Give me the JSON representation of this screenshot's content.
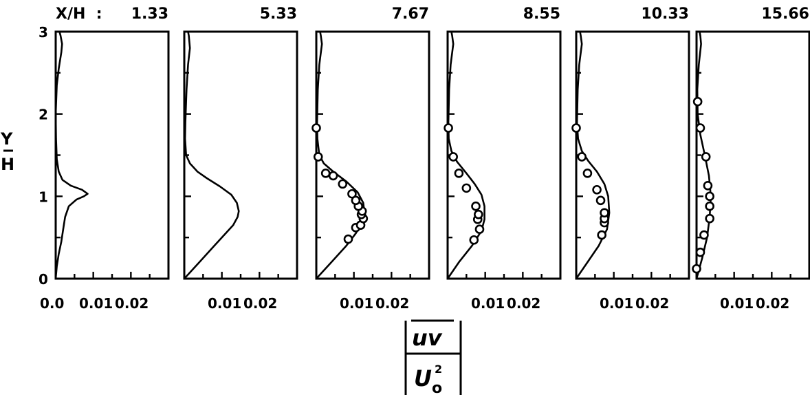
{
  "chart_data": {
    "type": "line",
    "x_prefix": "X/H  :",
    "ylabel_top": "Y",
    "ylabel_bottom": "H",
    "ylim": [
      0,
      3
    ],
    "yticks": [
      "0",
      "1",
      "2",
      "3"
    ],
    "xlim": [
      0,
      0.03
    ],
    "xlabel_num": "uv",
    "xlabel_den": "U",
    "xlabel_den_sub": "o",
    "xlabel_den_sup": "2",
    "panels": [
      {
        "title": "1.33",
        "xticks": [
          {
            "v": 0,
            "label": "0.0"
          },
          {
            "v": 0.01,
            "label": "0.01"
          },
          {
            "v": 0.02,
            "label": "0.02"
          }
        ],
        "curve": [
          [
            0,
            0
          ],
          [
            0.0003,
            0.15
          ],
          [
            0.0008,
            0.3
          ],
          [
            0.0015,
            0.45
          ],
          [
            0.002,
            0.6
          ],
          [
            0.0025,
            0.75
          ],
          [
            0.0035,
            0.88
          ],
          [
            0.0055,
            0.96
          ],
          [
            0.0075,
            1.0
          ],
          [
            0.0085,
            1.03
          ],
          [
            0.007,
            1.08
          ],
          [
            0.004,
            1.13
          ],
          [
            0.0018,
            1.2
          ],
          [
            0.0008,
            1.3
          ],
          [
            0.0003,
            1.45
          ],
          [
            0.0001,
            1.7
          ],
          [
            0,
            2.0
          ],
          [
            0.0003,
            2.35
          ],
          [
            0.0008,
            2.55
          ],
          [
            0.0015,
            2.75
          ],
          [
            0.0017,
            2.85
          ],
          [
            0.0013,
            2.95
          ],
          [
            0.001,
            3.0
          ]
        ],
        "points": []
      },
      {
        "title": "5.33",
        "xticks": [
          {
            "v": 0.01,
            "label": "0.01"
          },
          {
            "v": 0.02,
            "label": "0.02"
          }
        ],
        "curve": [
          [
            0,
            0
          ],
          [
            0.004,
            0.2
          ],
          [
            0.008,
            0.4
          ],
          [
            0.011,
            0.55
          ],
          [
            0.013,
            0.65
          ],
          [
            0.0142,
            0.75
          ],
          [
            0.0145,
            0.82
          ],
          [
            0.014,
            0.92
          ],
          [
            0.0125,
            1.02
          ],
          [
            0.0095,
            1.12
          ],
          [
            0.006,
            1.22
          ],
          [
            0.0035,
            1.3
          ],
          [
            0.0015,
            1.4
          ],
          [
            0.0005,
            1.5
          ],
          [
            0.0002,
            1.7
          ],
          [
            0.0003,
            1.9
          ],
          [
            0.0006,
            2.3
          ],
          [
            0.001,
            2.6
          ],
          [
            0.0015,
            2.8
          ],
          [
            0.0012,
            2.95
          ],
          [
            0.001,
            3.0
          ]
        ],
        "points": []
      },
      {
        "title": "7.67",
        "xticks": [
          {
            "v": 0.01,
            "label": "0.01"
          },
          {
            "v": 0.02,
            "label": "0.02"
          }
        ],
        "curve": [
          [
            0,
            0
          ],
          [
            0.004,
            0.2
          ],
          [
            0.008,
            0.4
          ],
          [
            0.0105,
            0.55
          ],
          [
            0.0122,
            0.68
          ],
          [
            0.0128,
            0.8
          ],
          [
            0.0125,
            0.92
          ],
          [
            0.011,
            1.05
          ],
          [
            0.008,
            1.18
          ],
          [
            0.0045,
            1.3
          ],
          [
            0.002,
            1.4
          ],
          [
            0.0008,
            1.5
          ],
          [
            0.0003,
            1.7
          ],
          [
            0.0002,
            1.9
          ],
          [
            0.0004,
            2.3
          ],
          [
            0.0008,
            2.6
          ],
          [
            0.0015,
            2.85
          ],
          [
            0.0012,
            2.95
          ],
          [
            0.001,
            3.0
          ]
        ],
        "points": [
          [
            0.0085,
            0.48
          ],
          [
            0.0105,
            0.62
          ],
          [
            0.0118,
            0.65
          ],
          [
            0.0125,
            0.73
          ],
          [
            0.012,
            0.78
          ],
          [
            0.0122,
            0.82
          ],
          [
            0.0112,
            0.88
          ],
          [
            0.0105,
            0.95
          ],
          [
            0.0095,
            1.03
          ],
          [
            0.007,
            1.15
          ],
          [
            0.0045,
            1.25
          ],
          [
            0.0025,
            1.28
          ],
          [
            0.0005,
            1.48
          ],
          [
            0,
            1.83
          ]
        ]
      },
      {
        "title": "8.55",
        "xticks": [
          {
            "v": 0.01,
            "label": "0.01"
          },
          {
            "v": 0.02,
            "label": "0.02"
          }
        ],
        "curve": [
          [
            0,
            0
          ],
          [
            0.003,
            0.2
          ],
          [
            0.0065,
            0.4
          ],
          [
            0.009,
            0.58
          ],
          [
            0.0098,
            0.72
          ],
          [
            0.0098,
            0.88
          ],
          [
            0.009,
            1.02
          ],
          [
            0.0072,
            1.15
          ],
          [
            0.005,
            1.28
          ],
          [
            0.0025,
            1.42
          ],
          [
            0.001,
            1.55
          ],
          [
            0.0003,
            1.7
          ],
          [
            0.0002,
            1.9
          ],
          [
            0.0004,
            2.3
          ],
          [
            0.0008,
            2.6
          ],
          [
            0.0015,
            2.85
          ],
          [
            0.0012,
            2.95
          ],
          [
            0.001,
            3.0
          ]
        ],
        "points": [
          [
            0.007,
            0.47
          ],
          [
            0.0085,
            0.6
          ],
          [
            0.008,
            0.72
          ],
          [
            0.0082,
            0.78
          ],
          [
            0.0075,
            0.88
          ],
          [
            0.005,
            1.1
          ],
          [
            0.003,
            1.28
          ],
          [
            0.0015,
            1.48
          ],
          [
            0.0002,
            1.83
          ]
        ]
      },
      {
        "title": "10.33",
        "xticks": [
          {
            "v": 0.01,
            "label": "0.01"
          },
          {
            "v": 0.02,
            "label": "0.02"
          }
        ],
        "curve": [
          [
            0,
            0
          ],
          [
            0.003,
            0.2
          ],
          [
            0.006,
            0.4
          ],
          [
            0.0082,
            0.6
          ],
          [
            0.0088,
            0.8
          ],
          [
            0.0085,
            1.0
          ],
          [
            0.0075,
            1.15
          ],
          [
            0.0055,
            1.3
          ],
          [
            0.0032,
            1.43
          ],
          [
            0.0015,
            1.55
          ],
          [
            0.0005,
            1.7
          ],
          [
            0.0002,
            1.9
          ],
          [
            0.0004,
            2.3
          ],
          [
            0.0008,
            2.6
          ],
          [
            0.0015,
            2.85
          ],
          [
            0.0012,
            2.95
          ],
          [
            0.001,
            3.0
          ]
        ],
        "points": [
          [
            0.0068,
            0.53
          ],
          [
            0.0075,
            0.68
          ],
          [
            0.0075,
            0.73
          ],
          [
            0.0075,
            0.8
          ],
          [
            0.0065,
            0.95
          ],
          [
            0.0055,
            1.08
          ],
          [
            0.003,
            1.28
          ],
          [
            0.0015,
            1.48
          ],
          [
            0,
            1.83
          ]
        ]
      },
      {
        "title": "15.66",
        "xticks": [
          {
            "v": 0.01,
            "label": "0.01"
          },
          {
            "v": 0.02,
            "label": "0.02"
          }
        ],
        "curve": [
          [
            0,
            0
          ],
          [
            0.0015,
            0.25
          ],
          [
            0.0028,
            0.5
          ],
          [
            0.0035,
            0.75
          ],
          [
            0.0038,
            1.0
          ],
          [
            0.0033,
            1.25
          ],
          [
            0.0022,
            1.5
          ],
          [
            0.001,
            1.75
          ],
          [
            0.0003,
            2.0
          ],
          [
            0.0002,
            2.3
          ],
          [
            0.0006,
            2.6
          ],
          [
            0.0012,
            2.85
          ],
          [
            0.001,
            2.95
          ],
          [
            0.0008,
            3.0
          ]
        ],
        "points": [
          [
            0,
            0.12
          ],
          [
            0.001,
            0.32
          ],
          [
            0.002,
            0.53
          ],
          [
            0.0035,
            0.73
          ],
          [
            0.0035,
            0.88
          ],
          [
            0.0035,
            1.0
          ],
          [
            0.003,
            1.13
          ],
          [
            0.0025,
            1.48
          ],
          [
            0.001,
            1.83
          ],
          [
            0.0003,
            2.15
          ]
        ]
      }
    ]
  }
}
